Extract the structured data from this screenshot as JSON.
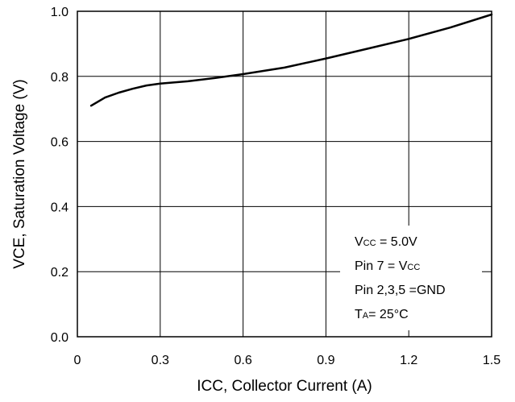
{
  "chart_data": {
    "type": "line",
    "title": "",
    "xlabel": "ICC, Collector Current (A)",
    "ylabel": "VCE, Saturation Voltage (V)",
    "xlim": [
      0,
      1.5
    ],
    "ylim": [
      0.0,
      1.0
    ],
    "x_ticks": [
      "0",
      "0.3",
      "0.6",
      "0.9",
      "1.2",
      "1.5"
    ],
    "y_ticks": [
      "0.0",
      "0.2",
      "0.4",
      "0.6",
      "0.8",
      "1.0"
    ],
    "grid": true,
    "series": [
      {
        "x": [
          0.05,
          0.1,
          0.15,
          0.2,
          0.25,
          0.3,
          0.4,
          0.5,
          0.6,
          0.75,
          0.9,
          1.05,
          1.2,
          1.35,
          1.5
        ],
        "y": [
          0.71,
          0.735,
          0.75,
          0.762,
          0.772,
          0.778,
          0.785,
          0.795,
          0.807,
          0.827,
          0.855,
          0.885,
          0.915,
          0.95,
          0.99
        ],
        "color": "#000000"
      }
    ],
    "annotations": [
      {
        "main": "V",
        "sub": "CC",
        "rest": " = 5.0V"
      },
      {
        "main": "Pin 7 = V",
        "sub": "CC",
        "rest": ""
      },
      {
        "main": "Pin 2,3,5 =GND",
        "sub": "",
        "rest": ""
      },
      {
        "main": "T",
        "sub": "A",
        "rest": "= 25°C"
      }
    ]
  }
}
